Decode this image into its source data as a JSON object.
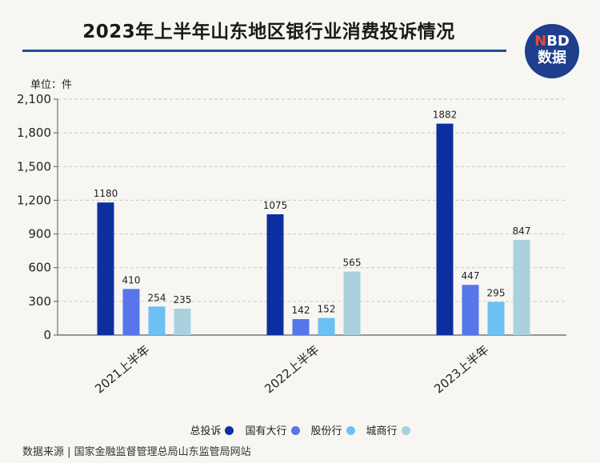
{
  "header": {
    "title": "2023年上半年山东地区银行业消费投诉情况",
    "logo_top": "NBD",
    "logo_bottom": "数据"
  },
  "unit_label": "单位：件",
  "source": "数据来源 | 国家金融监督管理总局山东监管局网站",
  "chart_data": {
    "type": "bar",
    "title": "2023年上半年山东地区银行业消费投诉情况",
    "categories": [
      "2021上半年",
      "2022上半年",
      "2023上半年"
    ],
    "series": [
      {
        "name": "总投诉",
        "color": "#0d2fa0",
        "values": [
          1180,
          1075,
          1882
        ]
      },
      {
        "name": "国有大行",
        "color": "#5676ea",
        "values": [
          410,
          142,
          447
        ]
      },
      {
        "name": "股份行",
        "color": "#6cc0f4",
        "values": [
          254,
          152,
          295
        ]
      },
      {
        "name": "城商行",
        "color": "#a9d1de",
        "values": [
          235,
          565,
          847
        ]
      }
    ],
    "y_ticks": [
      "0",
      "300",
      "600",
      "900",
      "1,200",
      "1,500",
      "1,800",
      "2,100"
    ],
    "ylim": [
      0,
      2100
    ],
    "grid": true,
    "legend_position": "bottom"
  }
}
